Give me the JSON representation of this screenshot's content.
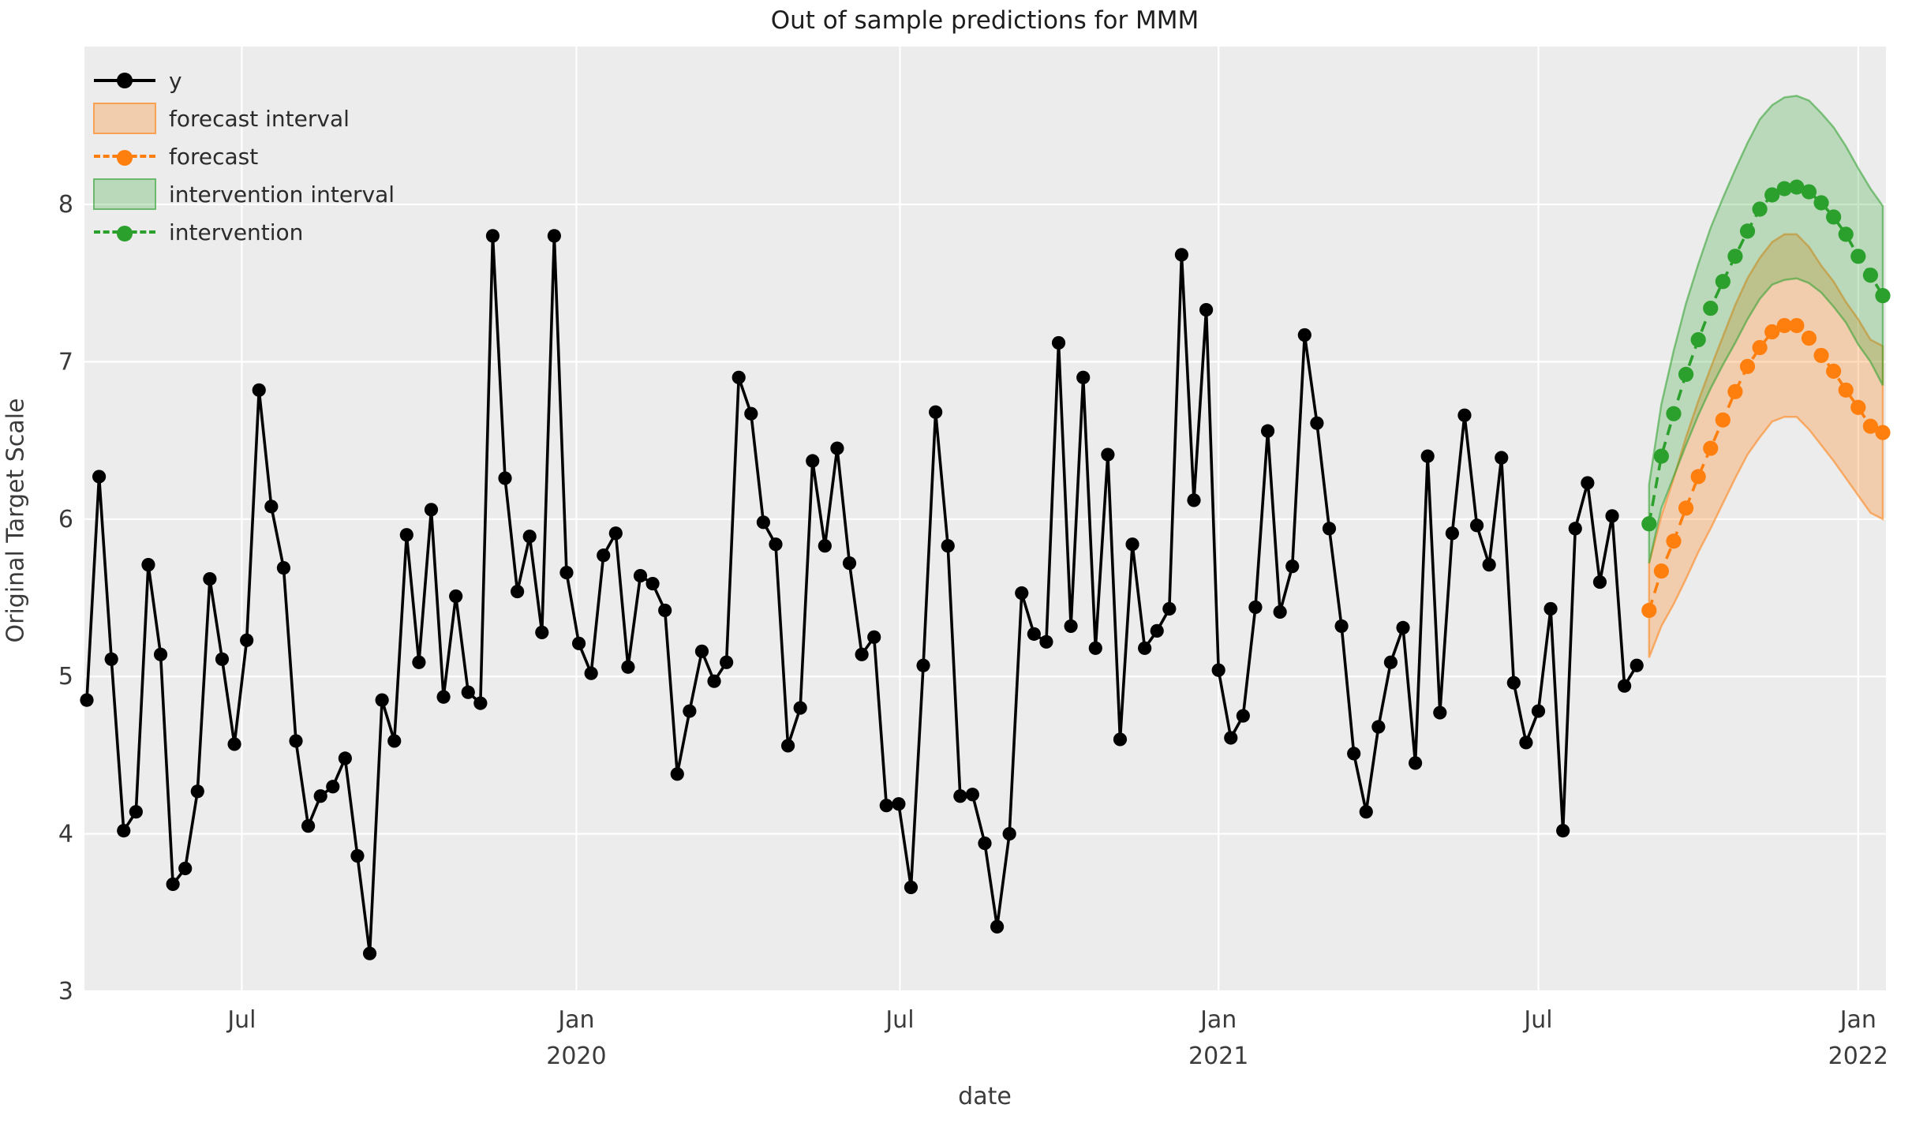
{
  "chart_data": {
    "type": "line",
    "title": "Out of sample predictions for MMM",
    "xlabel": "date",
    "ylabel": "Original Target Scale",
    "ylim": [
      3,
      8.99
    ],
    "grid": "white-on-gray",
    "legend_position": "upper left",
    "y_ticks": [
      3,
      4,
      5,
      6,
      7,
      8
    ],
    "x_ticks": [
      {
        "month": "Jul",
        "year": "",
        "index": 12.6
      },
      {
        "month": "Jan",
        "year": "2020",
        "index": 39.8
      },
      {
        "month": "Jul",
        "year": "",
        "index": 66.1
      },
      {
        "month": "Jan",
        "year": "2021",
        "index": 92.0
      },
      {
        "month": "Jul",
        "year": "",
        "index": 118.0
      },
      {
        "month": "Jan",
        "year": "2022",
        "index": 144.0
      }
    ],
    "x_note": "weekly observations, index 0 = first week of April 2019; forecast begins at index 127 (Sep 2021)",
    "series": [
      {
        "name": "y",
        "type": "observed",
        "start_index": 0,
        "values": [
          4.85,
          6.27,
          5.11,
          4.02,
          4.14,
          5.71,
          5.14,
          3.68,
          3.78,
          4.27,
          5.62,
          5.11,
          4.57,
          5.23,
          6.82,
          6.08,
          5.69,
          4.59,
          4.05,
          4.24,
          4.3,
          4.48,
          3.86,
          3.24,
          4.85,
          4.59,
          5.9,
          5.09,
          6.06,
          4.87,
          5.51,
          4.9,
          4.83,
          7.8,
          6.26,
          5.54,
          5.89,
          5.28,
          7.8,
          5.66,
          5.21,
          5.02,
          5.77,
          5.91,
          5.06,
          5.64,
          5.59,
          5.42,
          4.38,
          4.78,
          5.16,
          4.97,
          5.09,
          6.9,
          6.67,
          5.98,
          5.84,
          4.56,
          4.8,
          6.37,
          5.83,
          6.45,
          5.72,
          5.14,
          5.25,
          4.18,
          4.19,
          3.66,
          5.07,
          6.68,
          5.83,
          4.24,
          4.25,
          3.94,
          3.41,
          4.0,
          5.53,
          5.27,
          5.22,
          7.12,
          5.32,
          6.9,
          5.18,
          6.41,
          4.6,
          5.84,
          5.18,
          5.29,
          5.43,
          7.68,
          6.12,
          7.33,
          5.04,
          4.61,
          4.75,
          5.44,
          6.56,
          5.41,
          5.7,
          7.17,
          6.61,
          5.94,
          5.32,
          4.51,
          4.14,
          4.68,
          5.09,
          5.31,
          4.45,
          6.4,
          4.77,
          5.91,
          6.66,
          5.96,
          5.71,
          6.39,
          4.96,
          4.58,
          4.78,
          5.43,
          4.02,
          5.94,
          6.23,
          5.6,
          6.02,
          4.94,
          5.07
        ]
      },
      {
        "name": "forecast",
        "type": "forecast",
        "start_index": 127,
        "values": [
          5.42,
          5.67,
          5.86,
          6.07,
          6.27,
          6.45,
          6.63,
          6.81,
          6.97,
          7.09,
          7.19,
          7.23,
          7.23,
          7.15,
          7.04,
          6.94,
          6.82,
          6.71,
          6.59,
          6.55
        ],
        "lower": [
          5.12,
          5.32,
          5.46,
          5.62,
          5.79,
          5.94,
          6.1,
          6.26,
          6.41,
          6.52,
          6.62,
          6.65,
          6.65,
          6.57,
          6.47,
          6.37,
          6.26,
          6.15,
          6.04,
          6.0
        ],
        "upper": [
          5.72,
          6.02,
          6.26,
          6.52,
          6.75,
          6.96,
          7.16,
          7.36,
          7.53,
          7.66,
          7.76,
          7.81,
          7.81,
          7.73,
          7.61,
          7.51,
          7.38,
          7.27,
          7.14,
          7.1
        ]
      },
      {
        "name": "intervention",
        "type": "forecast",
        "start_index": 127,
        "values": [
          5.97,
          6.4,
          6.67,
          6.92,
          7.14,
          7.34,
          7.51,
          7.67,
          7.83,
          7.97,
          8.06,
          8.1,
          8.11,
          8.08,
          8.01,
          7.92,
          7.81,
          7.67,
          7.55,
          7.42
        ],
        "lower": [
          5.72,
          6.07,
          6.27,
          6.47,
          6.66,
          6.83,
          6.98,
          7.12,
          7.27,
          7.4,
          7.49,
          7.52,
          7.53,
          7.5,
          7.44,
          7.35,
          7.25,
          7.11,
          7.0,
          6.85
        ],
        "upper": [
          6.22,
          6.73,
          7.07,
          7.37,
          7.62,
          7.85,
          8.04,
          8.22,
          8.39,
          8.54,
          8.63,
          8.68,
          8.69,
          8.66,
          8.58,
          8.49,
          8.37,
          8.23,
          8.1,
          7.99
        ]
      }
    ],
    "legend": [
      {
        "key": "y",
        "label": "y"
      },
      {
        "key": "forecast_interval",
        "label": "forecast interval"
      },
      {
        "key": "forecast",
        "label": "forecast"
      },
      {
        "key": "intervention_interval",
        "label": "intervention interval"
      },
      {
        "key": "intervention",
        "label": "intervention"
      }
    ],
    "colors": {
      "y": "#000000",
      "forecast": "#ff7f0e",
      "forecast_band_fill": "rgba(255,127,14,0.28)",
      "forecast_band_edge": "rgba(255,127,14,0.55)",
      "intervention": "#2ca02c",
      "intervention_band_fill": "rgba(44,160,44,0.26)",
      "intervention_band_edge": "rgba(44,160,44,0.55)",
      "plot_background": "#ececec",
      "gridline": "#ffffff",
      "tick_text": "#3b3b3b"
    }
  }
}
